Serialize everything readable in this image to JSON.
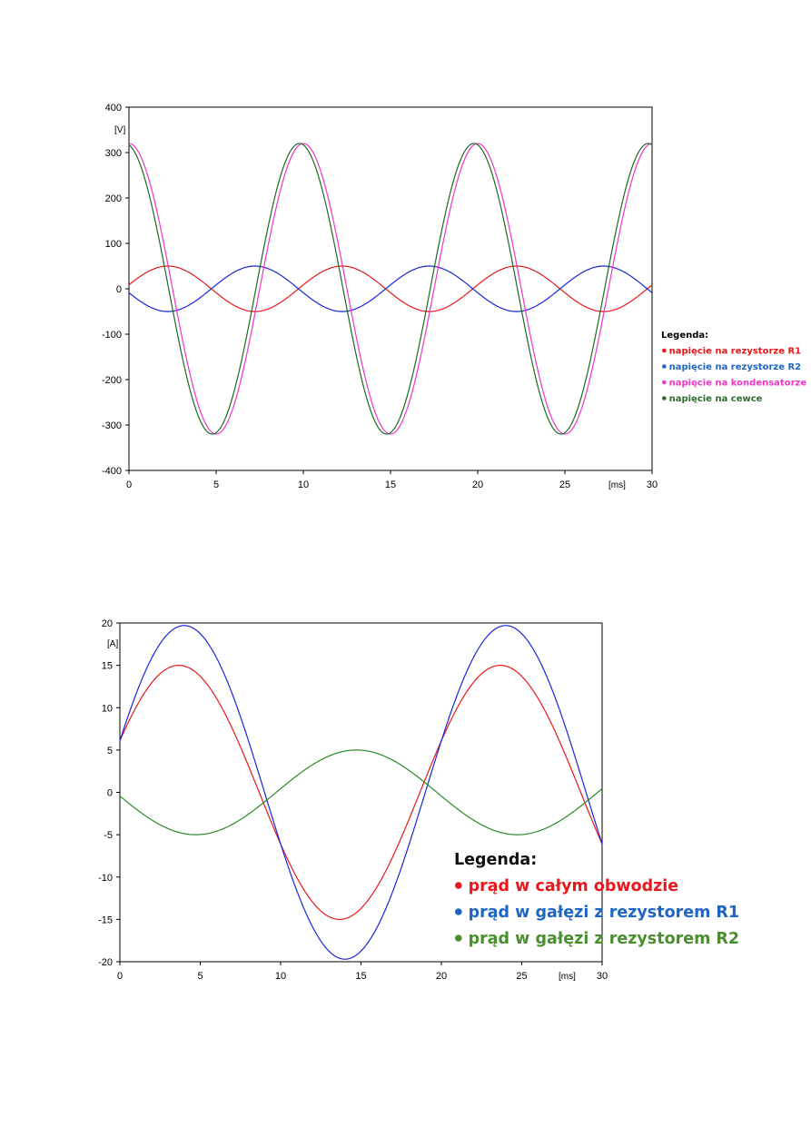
{
  "chart_data": [
    {
      "type": "line",
      "title": "",
      "xlabel": "[ms]",
      "ylabel": "[V]",
      "xlim": [
        0,
        30
      ],
      "ylim": [
        -400,
        400
      ],
      "x_ticks": [
        0,
        5,
        10,
        15,
        20,
        25,
        30
      ],
      "y_ticks": [
        400,
        300,
        200,
        100,
        0,
        -100,
        -200,
        -300,
        -400
      ],
      "grid": false,
      "period_ms": 10,
      "series": [
        {
          "name": "napięcie na rezystorze R1",
          "color": "#e8191c",
          "amplitude": 50,
          "phase_deg": 10
        },
        {
          "name": "napięcie na rezystorze R2",
          "color": "#1a26d9",
          "amplitude": 50,
          "phase_deg": 190
        },
        {
          "name": "napięcie na kondensatorze",
          "color": "#f035c8",
          "amplitude": 320,
          "phase_deg": 90
        },
        {
          "name": "napięcie na cewce",
          "color": "#1e6b1e",
          "amplitude": 320,
          "phase_deg": 98
        }
      ],
      "legend": {
        "title": "Legenda:",
        "position": "right",
        "items": [
          {
            "label": "napięcie na rezystorze R1",
            "color": "#e8191c"
          },
          {
            "label": "napięcie na rezystorze R2",
            "color": "#1e66c2"
          },
          {
            "label": "napięcie na kondensatorze",
            "color": "#f035c8"
          },
          {
            "label": "napięcie na cewce",
            "color": "#2e6b2e"
          }
        ]
      }
    },
    {
      "type": "line",
      "title": "",
      "xlabel": "[ms]",
      "ylabel": "[A]",
      "xlim": [
        0,
        30
      ],
      "ylim": [
        -20,
        20
      ],
      "x_ticks": [
        0,
        5,
        10,
        15,
        20,
        25,
        30
      ],
      "y_ticks": [
        20,
        15,
        10,
        5,
        0,
        -5,
        -10,
        -15,
        -20
      ],
      "grid": false,
      "period_ms": 20,
      "series": [
        {
          "name": "prąd w całym obwodzie",
          "color": "#e8191c",
          "amplitude": 15,
          "phase_deg": 24
        },
        {
          "name": "prąd w gałęzi z rezystorem R1",
          "color": "#1a26d9",
          "amplitude": 19.7,
          "phase_deg": 18
        },
        {
          "name": "prąd w gałęzi z rezystorem R2",
          "color": "#2b8a2b",
          "amplitude": 5,
          "phase_deg": 185
        }
      ],
      "legend": {
        "title": "Legenda:",
        "position": "bottom-right",
        "items": [
          {
            "label": "prąd w całym obwodzie",
            "color": "#e8191c"
          },
          {
            "label": "prąd w gałęzi z rezystorem R1",
            "color": "#1e66c2"
          },
          {
            "label": "prąd w gałęzi z rezystorem R2",
            "color": "#4a8f2e"
          }
        ]
      }
    }
  ]
}
